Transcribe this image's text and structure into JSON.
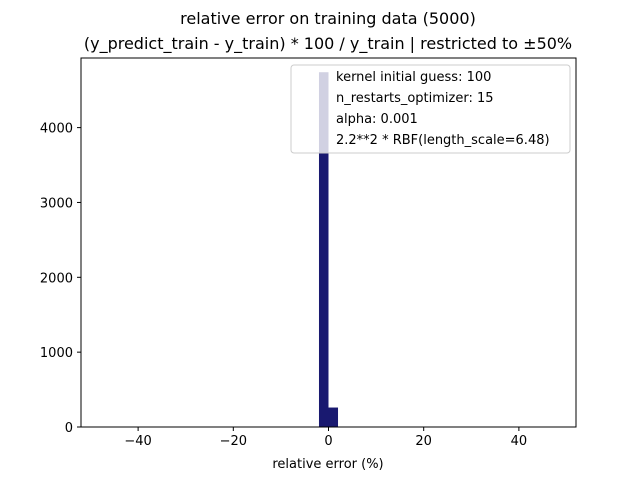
{
  "chart_data": {
    "type": "bar",
    "title_line1": "relative error on training data (5000)",
    "title_line2": "(y_predict_train - y_train) * 100 / y_train | restricted to ±50%",
    "xlabel": "relative error (%)",
    "ylabel": "",
    "xlim": [
      -52,
      52
    ],
    "ylim": [
      0,
      5000
    ],
    "bar_color": "#191970",
    "x_ticks": [
      {
        "value": -40,
        "label": "−40"
      },
      {
        "value": -20,
        "label": "−20"
      },
      {
        "value": 0,
        "label": "0"
      },
      {
        "value": 20,
        "label": "20"
      },
      {
        "value": 40,
        "label": "40"
      }
    ],
    "y_ticks": [
      {
        "value": 0,
        "label": "0"
      },
      {
        "value": 1000,
        "label": "1000"
      },
      {
        "value": 2000,
        "label": "2000"
      },
      {
        "value": 3000,
        "label": "3000"
      },
      {
        "value": 4000,
        "label": "4000"
      }
    ],
    "bins": [
      {
        "x0": -2,
        "x1": 0,
        "count": 4740
      },
      {
        "x0": 0,
        "x1": 2,
        "count": 260
      }
    ],
    "legend": {
      "position": "top-right",
      "entries": [
        "kernel initial guess: 100",
        "n_restarts_optimizer: 15",
        "alpha: 0.001",
        "2.2**2 * RBF(length_scale=6.48)"
      ]
    }
  }
}
